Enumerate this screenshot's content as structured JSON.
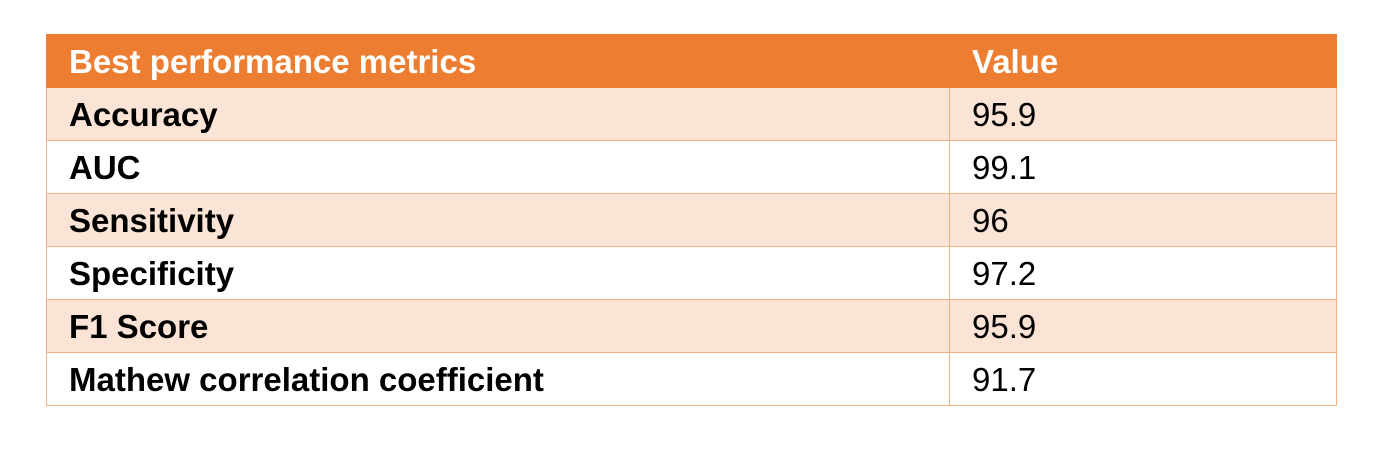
{
  "table": {
    "headers": [
      "Best performance metrics",
      "Value"
    ],
    "rows": [
      {
        "metric": "Accuracy",
        "value": "95.9"
      },
      {
        "metric": "AUC",
        "value": "99.1"
      },
      {
        "metric": "Sensitivity",
        "value": "96"
      },
      {
        "metric": "Specificity",
        "value": "97.2"
      },
      {
        "metric": "F1 Score",
        "value": "95.9"
      },
      {
        "metric": "Mathew correlation coefficient",
        "value": "91.7"
      }
    ]
  },
  "colors": {
    "header_bg": "#ed7d31",
    "header_text": "#ffffff",
    "band_bg": "#fbe4d5",
    "border": "#f4b183"
  }
}
